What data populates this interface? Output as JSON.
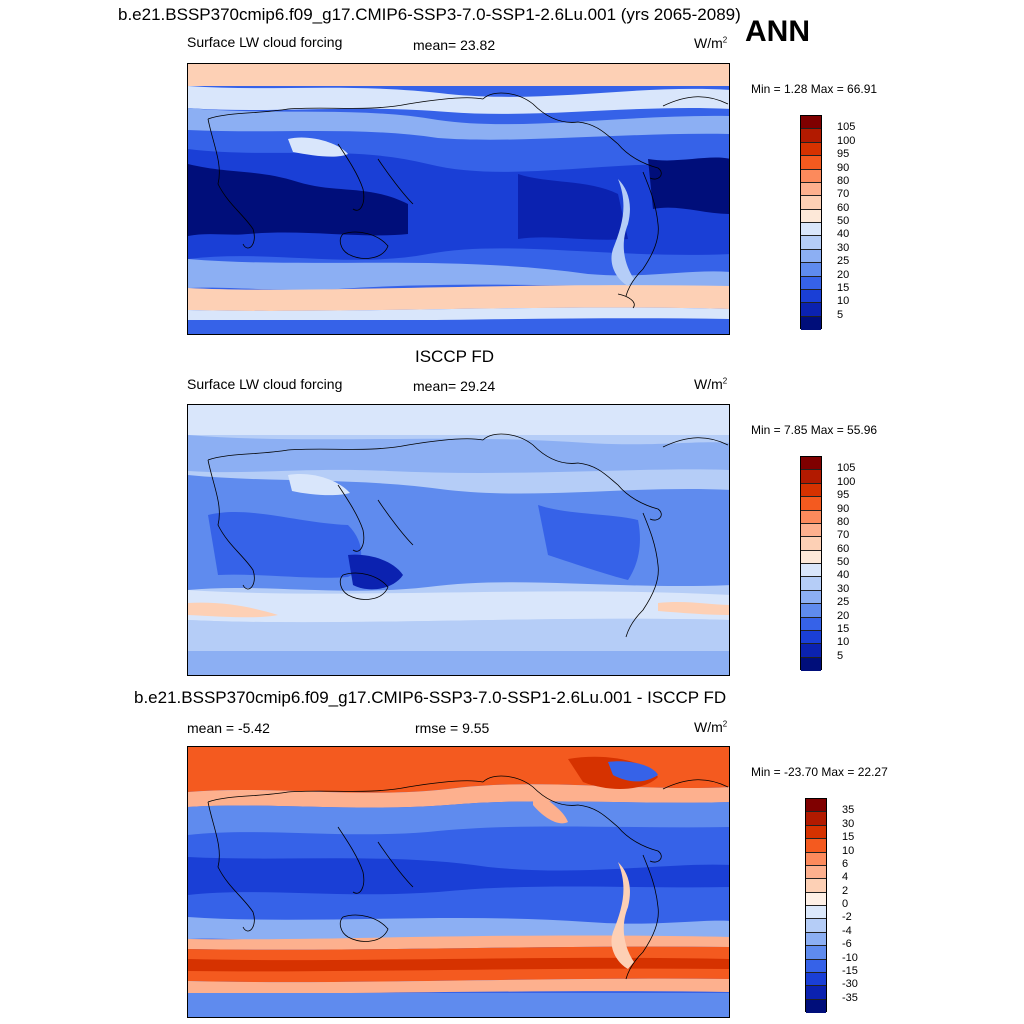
{
  "header": {
    "title": "b.e21.BSSP370cmip6.f09_g17.CMIP6-SSP3-7.0-SSP1-2.6Lu.001 (yrs 2065-2089)",
    "season": "ANN"
  },
  "panels": [
    {
      "id": "model",
      "title": "",
      "left_label": "Surface LW cloud forcing",
      "middle_label": "mean=  23.82",
      "units_base": "W/m",
      "units_exp": "2",
      "minmax": "Min =   1.28 Max =  66.91",
      "colorbar_labels": [
        "105",
        "100",
        "95",
        "90",
        "80",
        "70",
        "60",
        "50",
        "40",
        "30",
        "25",
        "20",
        "15",
        "10",
        "5"
      ]
    },
    {
      "id": "obs",
      "title": "ISCCP FD",
      "left_label": "Surface LW cloud forcing",
      "middle_label": "mean=  29.24",
      "units_base": "W/m",
      "units_exp": "2",
      "minmax": "Min =   7.85 Max =  55.96",
      "colorbar_labels": [
        "105",
        "100",
        "95",
        "90",
        "80",
        "70",
        "60",
        "50",
        "40",
        "30",
        "25",
        "20",
        "15",
        "10",
        "5"
      ]
    },
    {
      "id": "diff",
      "title": "b.e21.BSSP370cmip6.f09_g17.CMIP6-SSP3-7.0-SSP1-2.6Lu.001 - ISCCP FD",
      "left_label": "mean =  -5.42",
      "middle_label": "rmse =   9.55",
      "units_base": "W/m",
      "units_exp": "2",
      "minmax": "Min = -23.70 Max =  22.27",
      "colorbar_labels": [
        "35",
        "30",
        "15",
        "10",
        "6",
        "4",
        "2",
        "0",
        "-2",
        "-4",
        "-6",
        "-10",
        "-15",
        "-30",
        "-35"
      ]
    }
  ],
  "colors": {
    "abs_scale": [
      "#7f0000",
      "#b21a00",
      "#d63200",
      "#f45a1f",
      "#fc8a5c",
      "#fdb08e",
      "#fdd0b5",
      "#fde8d8",
      "#d9e6fb",
      "#b5cdf7",
      "#8caff3",
      "#5f8bee",
      "#3662e8",
      "#1a3fd6",
      "#0b22b0",
      "#000e7a"
    ],
    "diff_scale": [
      "#7f0000",
      "#b21a00",
      "#d63200",
      "#f45a1f",
      "#fc8a5c",
      "#fdb08e",
      "#fdd0b5",
      "#fef0e6",
      "#dbe8fb",
      "#b5cdf7",
      "#8caff3",
      "#5f8bee",
      "#3662e8",
      "#1a3fd6",
      "#0b22b0",
      "#000e7a"
    ]
  }
}
